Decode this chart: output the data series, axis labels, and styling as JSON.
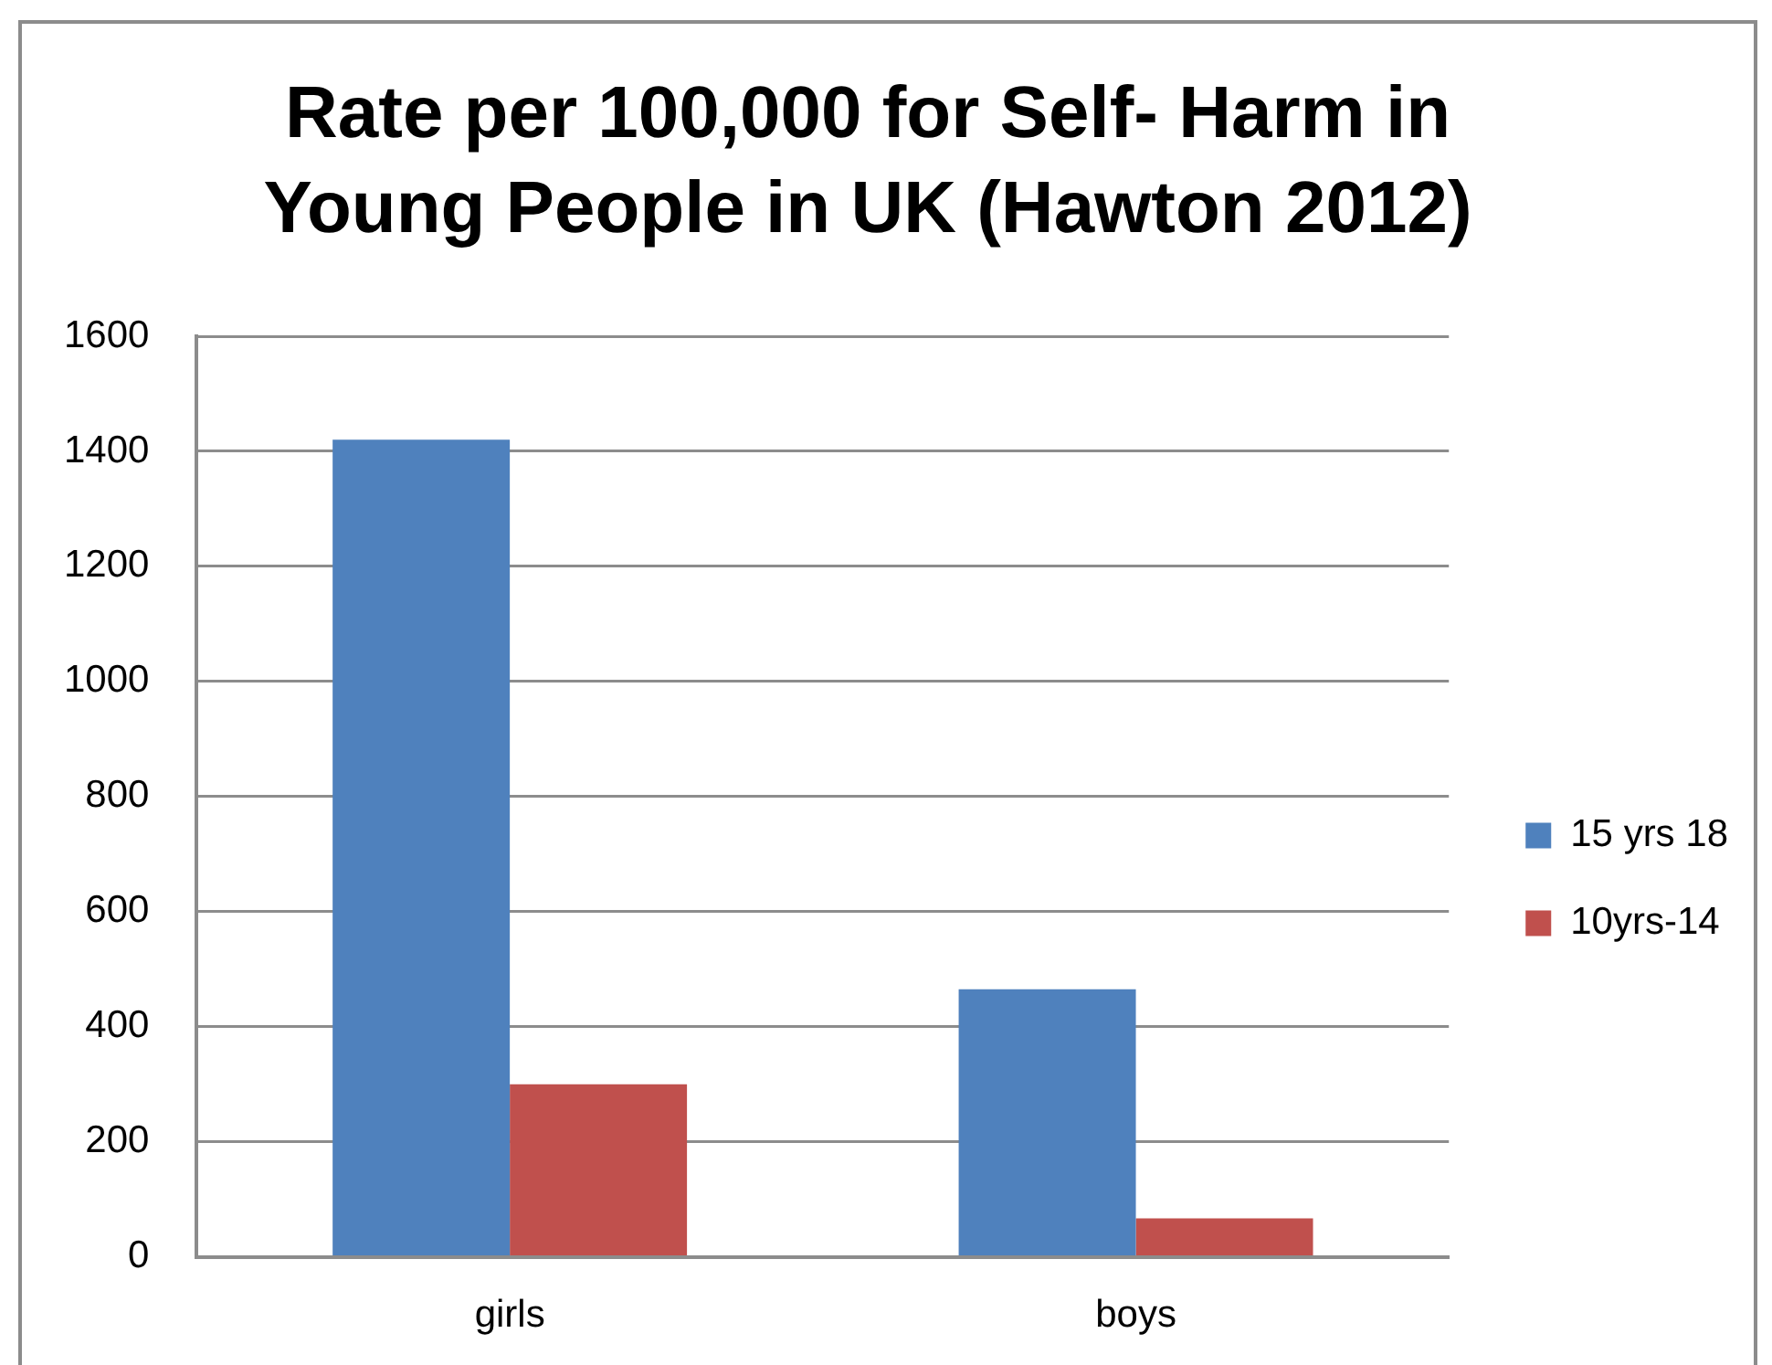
{
  "chart_data": {
    "type": "bar",
    "title": "Rate per 100,000 for Self- Harm in Young People in UK (Hawton 2012)",
    "categories": [
      "girls",
      "boys"
    ],
    "series": [
      {
        "name": "15 yrs 18",
        "color": "#4f81bd",
        "values": [
          1420,
          465
        ]
      },
      {
        "name": "10yrs-14",
        "color": "#c0504d",
        "values": [
          300,
          67
        ]
      }
    ],
    "ylim": [
      0,
      1600
    ],
    "yticks": [
      0,
      200,
      400,
      600,
      800,
      1000,
      1200,
      1400,
      1600
    ],
    "grid": "y",
    "legend": "right"
  }
}
